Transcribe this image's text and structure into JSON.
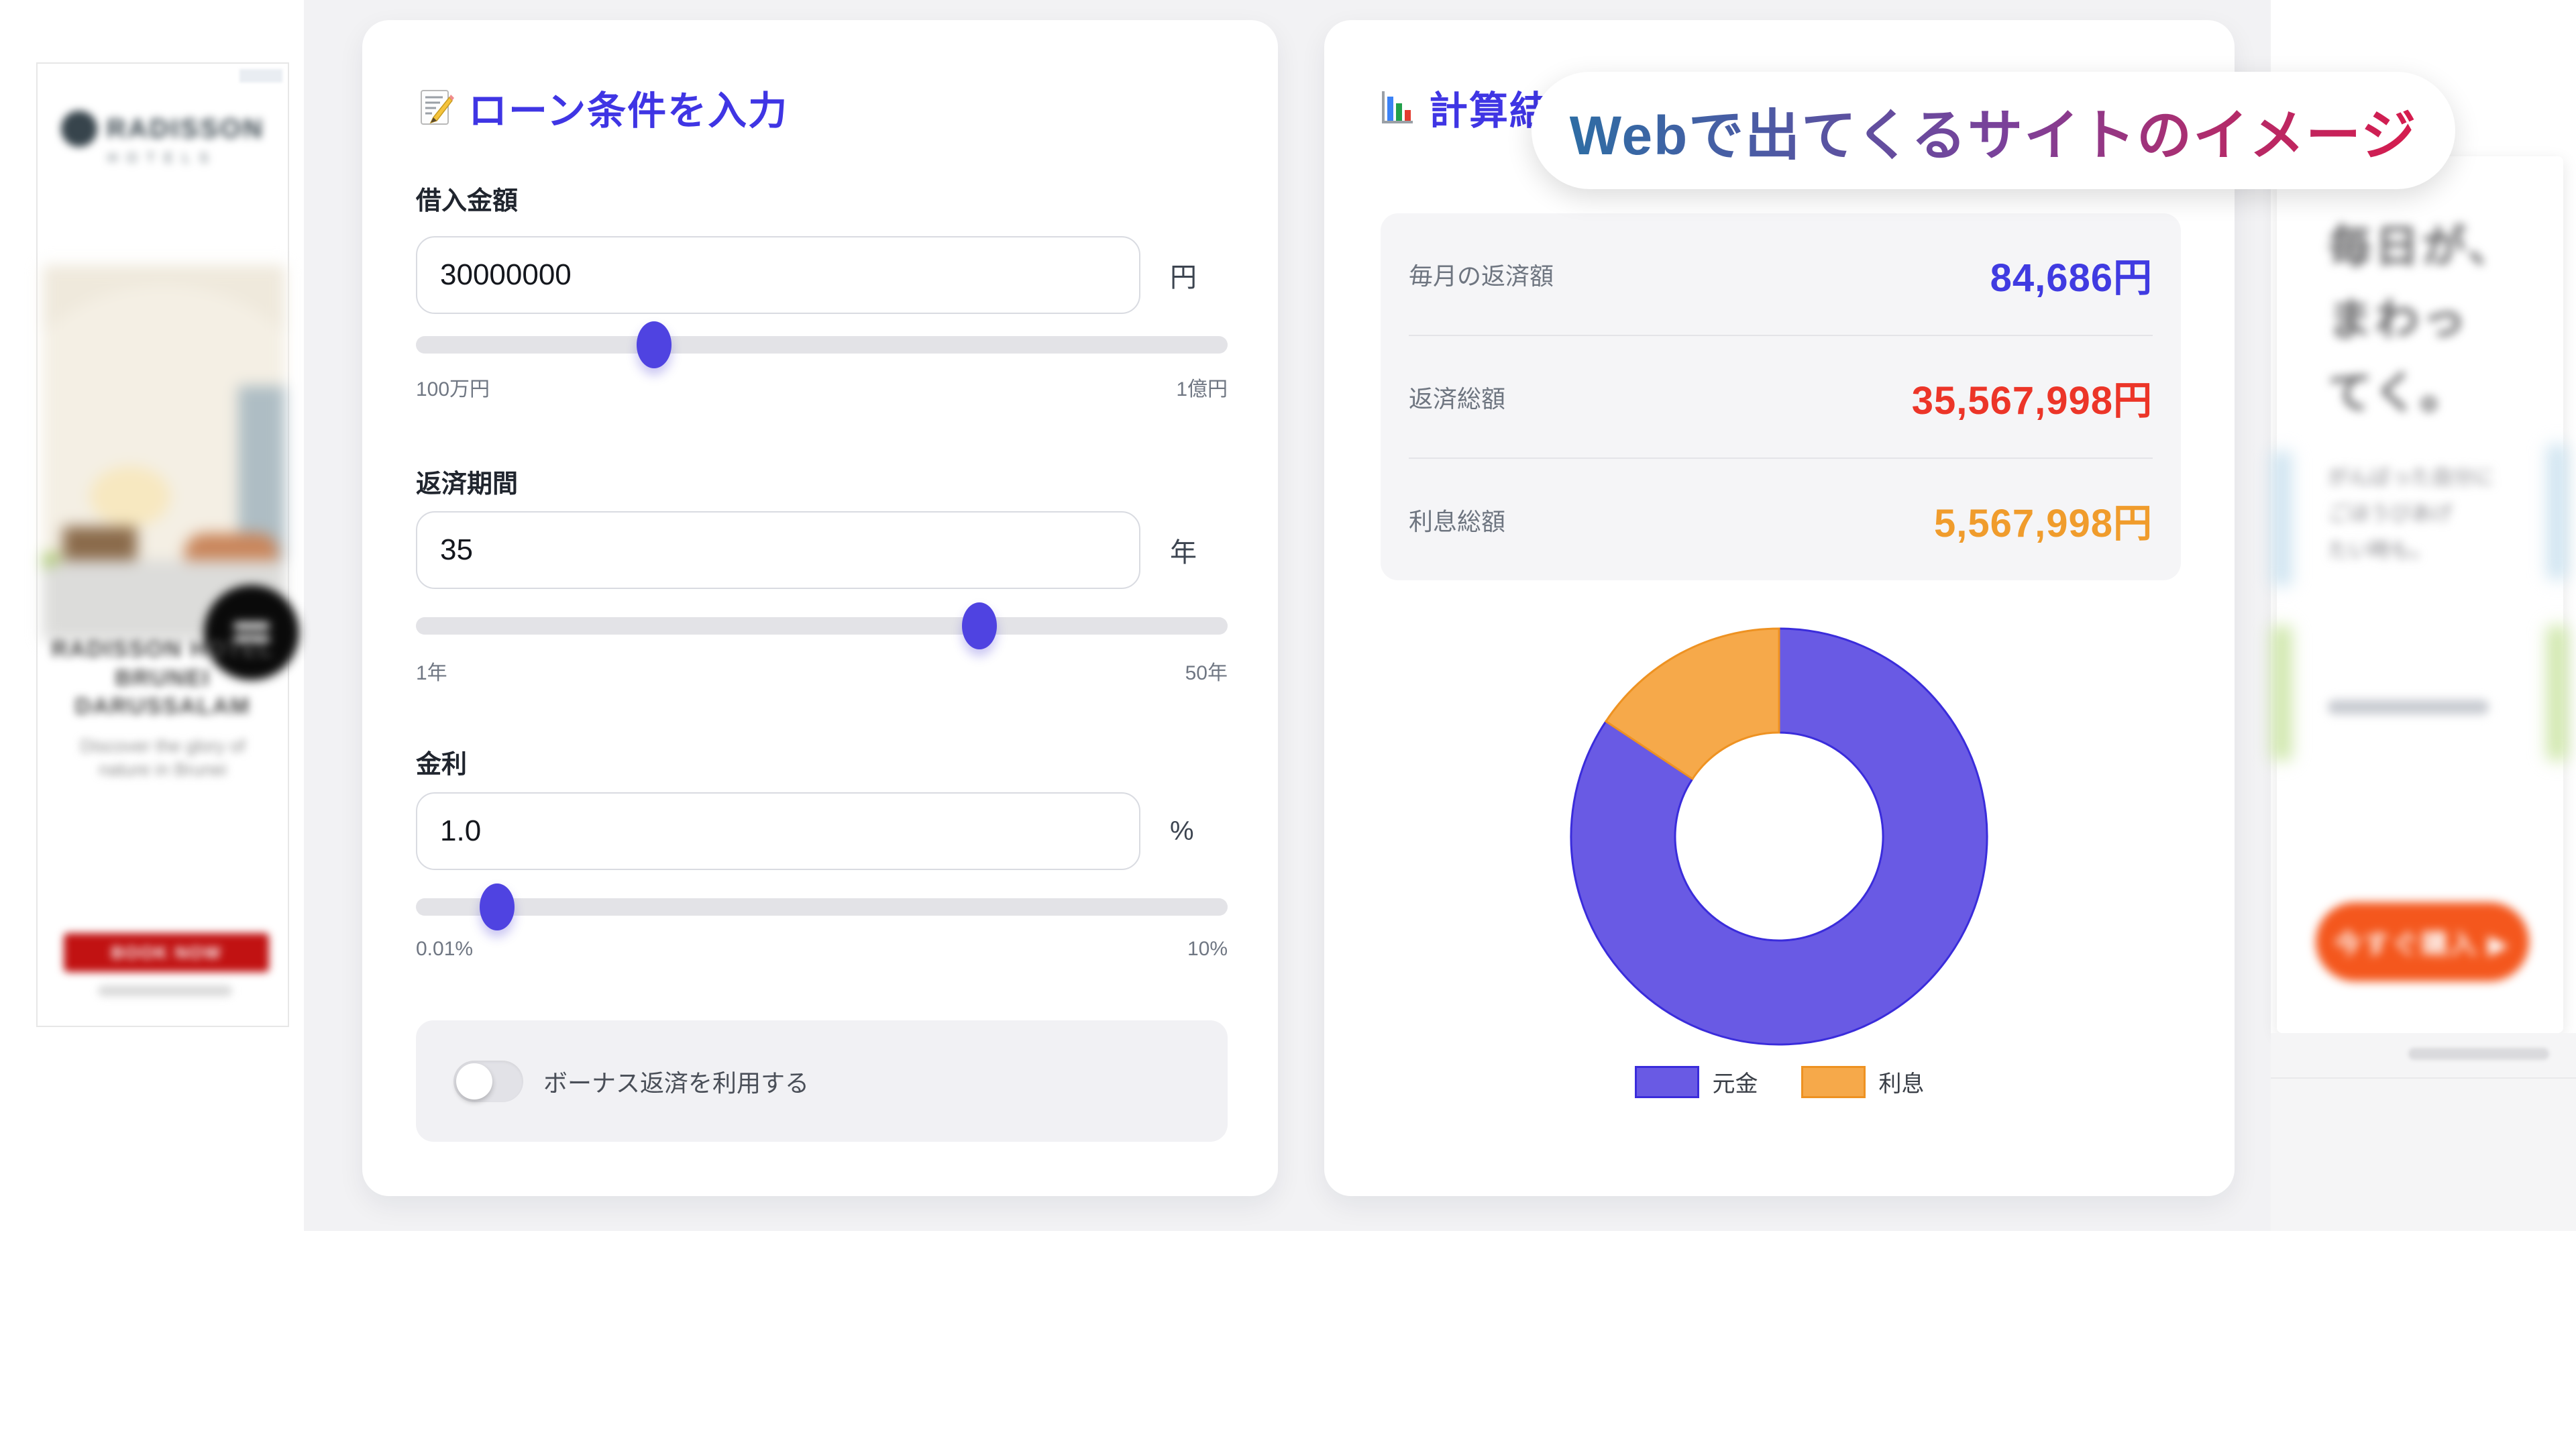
{
  "colors": {
    "band_background": "#F2F2F4",
    "accent_indigo": "#3F35E4",
    "slider_thumb": "#4F43E1",
    "result_monthly": "#403BE1",
    "result_total": "#EC3528",
    "result_interest": "#F09C2C",
    "donut_principal": "#695AE4",
    "donut_principal_border": "#3A2CDB",
    "donut_interest": "#F6A94A",
    "donut_interest_border": "#EE9222",
    "overlay_gradient_start": "#2E6DA4",
    "overlay_gradient_end": "#D61C4D",
    "left_ad_cta": "#C11212",
    "right_ad_cta": "#F4571D"
  },
  "loan_form": {
    "title": "ローン条件を入力",
    "title_icon": "memo-icon",
    "fields": [
      {
        "label": "借入金額",
        "value": "30000000",
        "unit": "円",
        "min_label": "100万円",
        "max_label": "1億円",
        "slider_percent": 29.3
      },
      {
        "label": "返済期間",
        "value": "35",
        "unit": "年",
        "min_label": "1年",
        "max_label": "50年",
        "slider_percent": 69.4
      },
      {
        "label": "金利",
        "value": "1.0",
        "unit": "%",
        "min_label": "0.01%",
        "max_label": "10%",
        "slider_percent": 10
      }
    ],
    "bonus": {
      "label": "ボーナス返済を利用する",
      "enabled": false
    }
  },
  "results": {
    "title": "計算結果",
    "title_icon": "bar-chart-icon",
    "rows": [
      {
        "label": "毎月の返済額",
        "value": "84,686円",
        "color": "#403BE1"
      },
      {
        "label": "返済総額",
        "value": "35,567,998円",
        "color": "#EC3528"
      },
      {
        "label": "利息総額",
        "value": "5,567,998円",
        "color": "#F09C2C"
      }
    ]
  },
  "chart_data": {
    "type": "pie",
    "variant": "donut",
    "labels": [
      "元金",
      "利息"
    ],
    "values": [
      30000000,
      5567998
    ],
    "unit": "円",
    "colors": [
      "#695AE4",
      "#F6A94A"
    ],
    "border_colors": [
      "#3A2CDB",
      "#EE9222"
    ],
    "cutout_ratio": 0.5,
    "start_angle": "top",
    "direction": "clockwise",
    "legend_position": "bottom"
  },
  "overlay": {
    "text": "Webで出てくるサイトのイメージ"
  },
  "left_ad": {
    "brand": "RADISSON",
    "brand_sub": "HOTELS",
    "headline_lines": [
      "RADISSON HOTEL",
      "BRUNEI",
      "DARUSSALAM"
    ],
    "tagline_lines": [
      "Discover the glory of",
      "nature in Brunei"
    ],
    "cta": "BOOK NOW"
  },
  "right_ad": {
    "headline_lines": [
      "毎日が、",
      "まわっ",
      "てく。"
    ],
    "body_lines": [
      "がんばった自分に",
      "ごほうびあげ",
      "たい時も。"
    ],
    "cta": "今すぐ購入 ▶"
  }
}
